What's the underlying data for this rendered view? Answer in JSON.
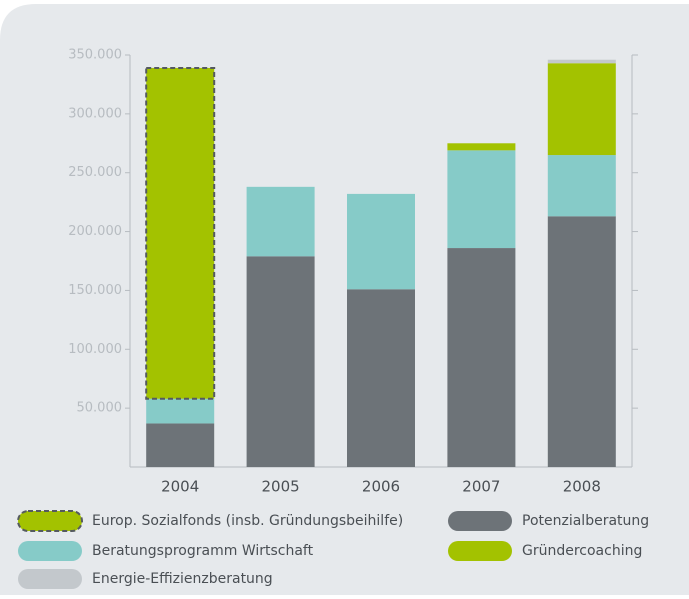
{
  "chart_data": {
    "type": "bar",
    "stacked": true,
    "categories": [
      "2004",
      "2005",
      "2006",
      "2007",
      "2008"
    ],
    "series": [
      {
        "name": "Potenzialberatung",
        "color": "#6d7378",
        "values": [
          37000,
          179000,
          151000,
          186000,
          213000
        ]
      },
      {
        "name": "Beratungsprogramm Wirtschaft",
        "color": "#86cbc8",
        "values": [
          21000,
          59000,
          81000,
          83000,
          52000
        ]
      },
      {
        "name": "Europ. Sozialfonds (insb. Gründungsbeihilfe)",
        "color": "#a3c200",
        "dashed": true,
        "values": [
          281000,
          null,
          null,
          null,
          null
        ]
      },
      {
        "name": "Gründercoaching",
        "color": "#a3c200",
        "values": [
          null,
          null,
          null,
          6000,
          78000
        ]
      },
      {
        "name": "Energie-Effizienzberatung",
        "color": "#c3c8cc",
        "values": [
          null,
          null,
          null,
          null,
          3000
        ]
      }
    ],
    "ylim": [
      0,
      350000
    ],
    "yticks": [
      {
        "value": 50000,
        "label": "50.000"
      },
      {
        "value": 100000,
        "label": "100.000"
      },
      {
        "value": 150000,
        "label": "150.000"
      },
      {
        "value": 200000,
        "label": "200.000"
      },
      {
        "value": 250000,
        "label": "250.000"
      },
      {
        "value": 300000,
        "label": "300.000"
      },
      {
        "value": 350000,
        "label": "350.000"
      }
    ]
  }
}
